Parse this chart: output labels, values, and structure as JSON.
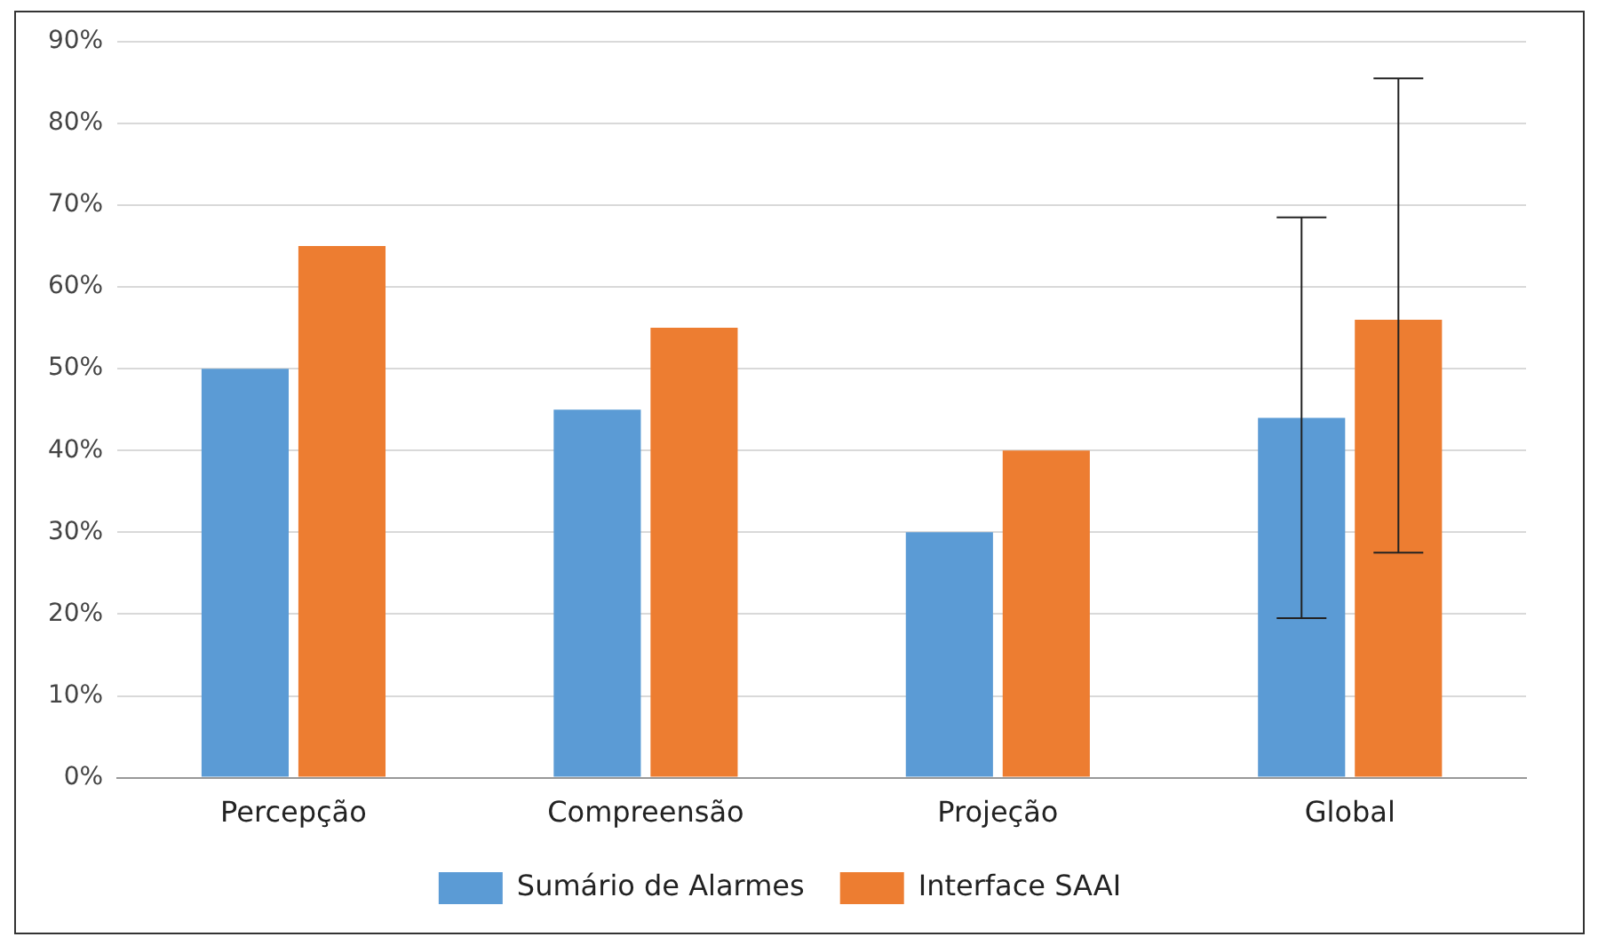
{
  "chart_data": {
    "type": "bar",
    "categories": [
      "Percepção",
      "Compreensão",
      "Projeção",
      "Global"
    ],
    "series": [
      {
        "name": "Sumário de Alarmes",
        "color": "#5b9bd5",
        "values": [
          50,
          45,
          30,
          44
        ],
        "errors": [
          null,
          null,
          null,
          [
            19.5,
            68.5
          ]
        ]
      },
      {
        "name": "Interface SAAI",
        "color": "#ed7d31",
        "values": [
          65,
          55,
          40,
          56
        ],
        "errors": [
          null,
          null,
          null,
          [
            27.5,
            85.5
          ]
        ]
      }
    ],
    "ylim": [
      0,
      90
    ],
    "yticks": [
      {
        "value": 0,
        "label": "0%"
      },
      {
        "value": 10,
        "label": "10%"
      },
      {
        "value": 20,
        "label": "20%"
      },
      {
        "value": 30,
        "label": "30%"
      },
      {
        "value": 40,
        "label": "40%"
      },
      {
        "value": 50,
        "label": "50%"
      },
      {
        "value": 60,
        "label": "60%"
      },
      {
        "value": 70,
        "label": "70%"
      },
      {
        "value": 80,
        "label": "80%"
      },
      {
        "value": 90,
        "label": "90%"
      }
    ],
    "grid": "y",
    "legend": "bottom"
  }
}
